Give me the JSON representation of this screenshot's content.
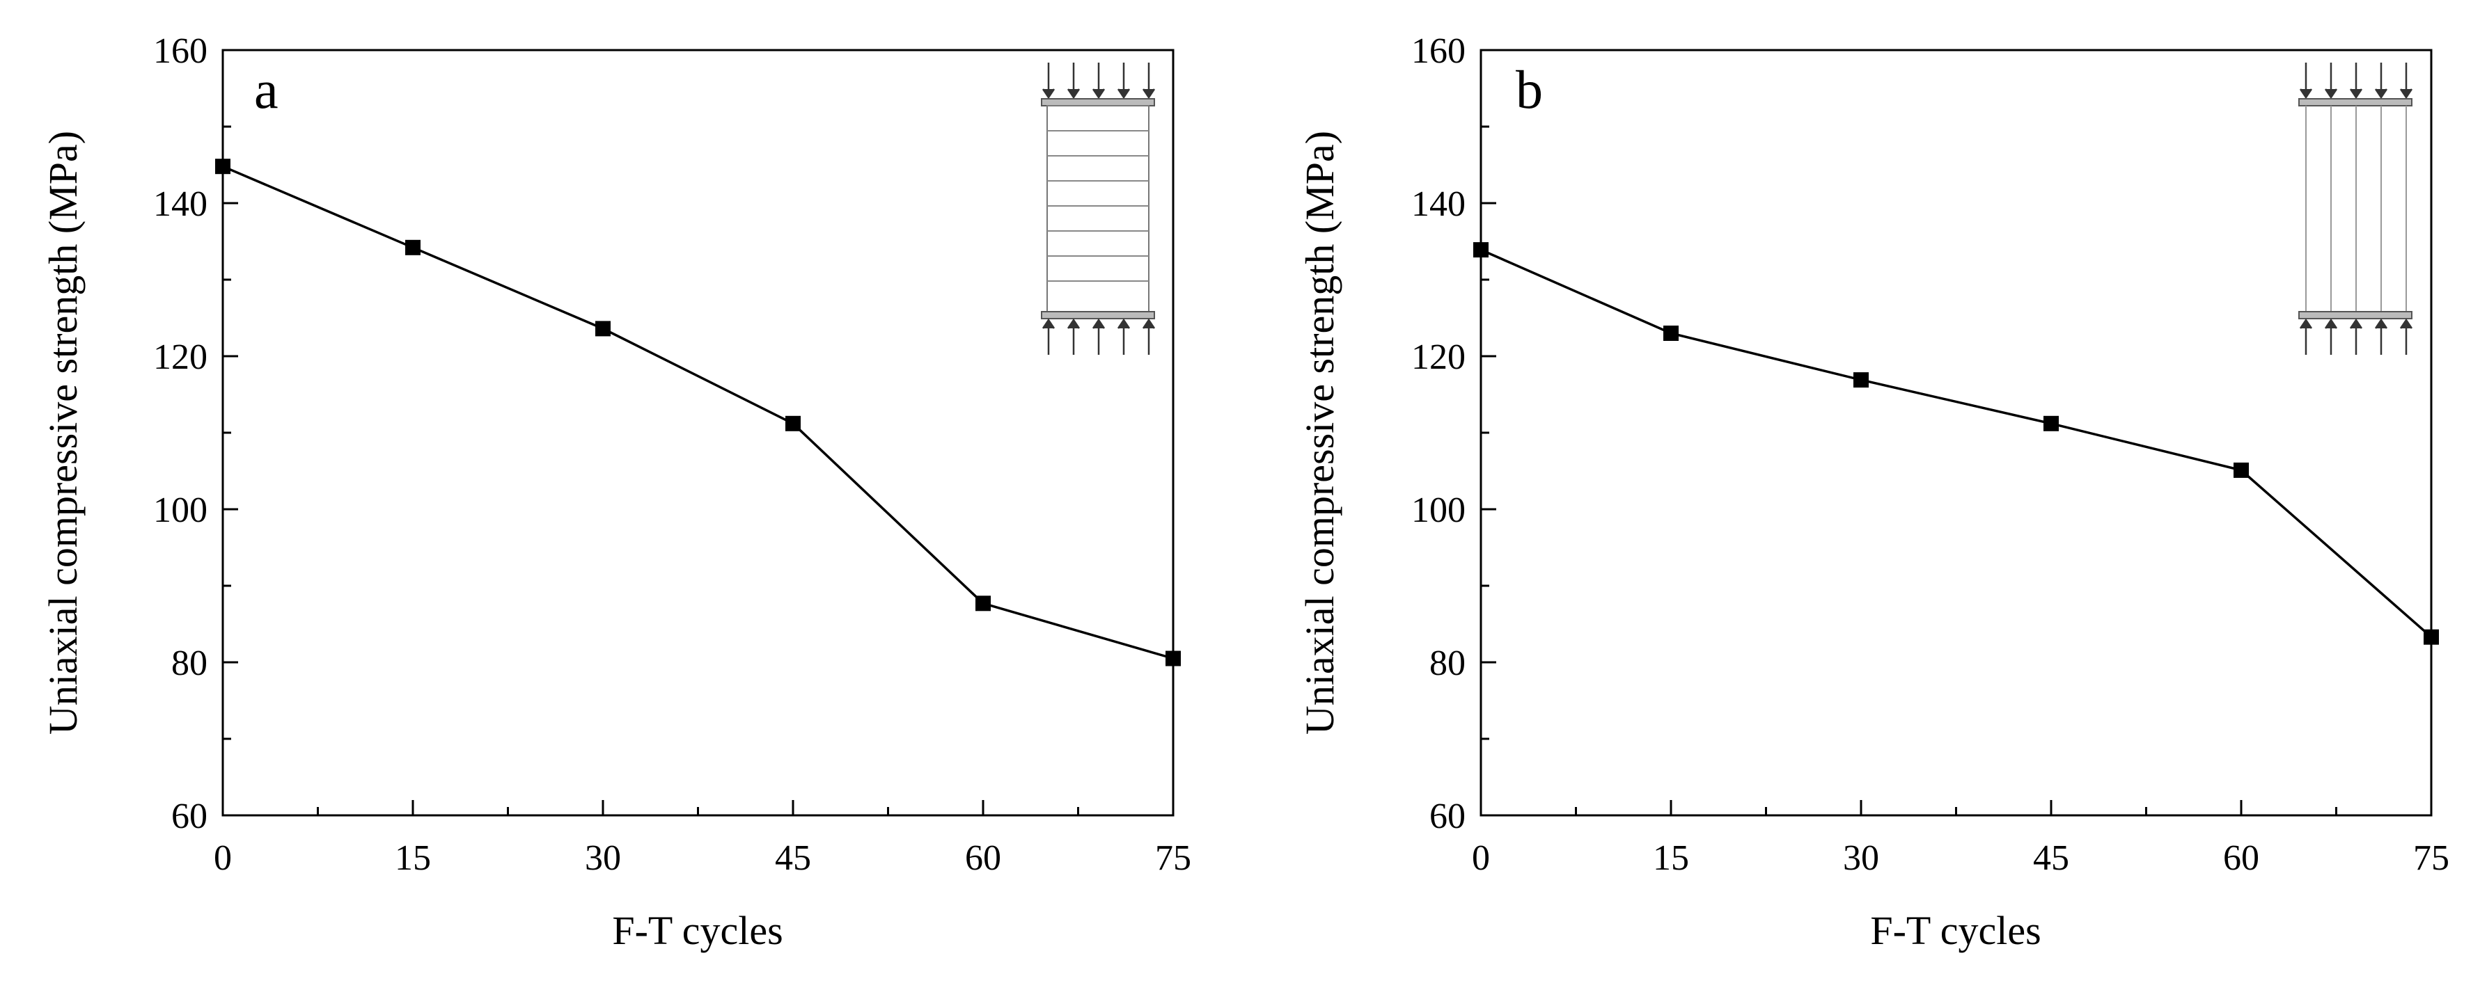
{
  "chart_data": [
    {
      "type": "line",
      "panel_label": "a",
      "x": [
        0,
        15,
        30,
        45,
        60,
        75
      ],
      "y": [
        144.8,
        134.2,
        123.6,
        111.2,
        87.7,
        80.5
      ],
      "xlabel": "F-T cycles",
      "ylabel": "Uniaxial compressive strength (MPa)",
      "xlim": [
        0,
        75
      ],
      "ylim": [
        60,
        160
      ],
      "xticks": [
        "0",
        "15",
        "30",
        "45",
        "60",
        "75"
      ],
      "yticks": [
        "60",
        "80",
        "100",
        "120",
        "140",
        "160"
      ],
      "marker": "square",
      "line_color": "#000000",
      "grid": false,
      "inset": "horizontal-layers"
    },
    {
      "type": "line",
      "panel_label": "b",
      "x": [
        0,
        15,
        30,
        45,
        60,
        75
      ],
      "y": [
        133.9,
        123.0,
        116.9,
        111.2,
        105.1,
        83.3
      ],
      "xlabel": "F-T cycles",
      "ylabel": "Uniaxial compressive strength (MPa)",
      "xlim": [
        0,
        75
      ],
      "ylim": [
        60,
        160
      ],
      "xticks": [
        "0",
        "15",
        "30",
        "45",
        "60",
        "75"
      ],
      "yticks": [
        "60",
        "80",
        "100",
        "120",
        "140",
        "160"
      ],
      "marker": "square",
      "line_color": "#000000",
      "grid": false,
      "inset": "vertical-layers"
    }
  ]
}
